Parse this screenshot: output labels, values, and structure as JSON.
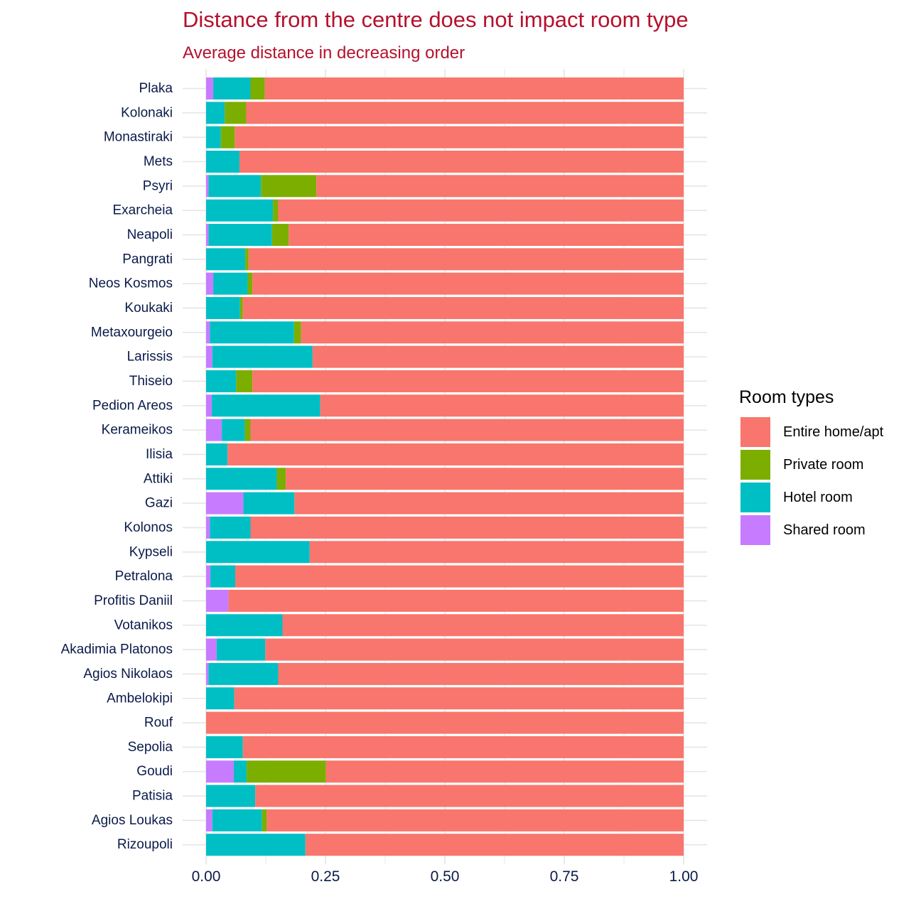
{
  "chart_data": {
    "type": "bar",
    "orientation": "horizontal",
    "stacked": true,
    "title": "Distance from the centre does not impact room type",
    "subtitle": "Average distance in decreasing order",
    "xlim": [
      0,
      1
    ],
    "xticks": [
      "0.00",
      "0.25",
      "0.50",
      "0.75",
      "1.00"
    ],
    "grid": true,
    "legend_title": "Room types",
    "legend_position": "right",
    "categories": [
      "Plaka",
      "Kolonaki",
      "Monastiraki",
      "Mets",
      "Psyri",
      "Exarcheia",
      "Neapoli",
      "Pangrati",
      "Neos Kosmos",
      "Koukaki",
      "Metaxourgeio",
      "Larissis",
      "Thiseio",
      "Pedion Areos",
      "Kerameikos",
      "Ilisia",
      "Attiki",
      "Gazi",
      "Kolonos",
      "Kypseli",
      "Petralona",
      "Profitis Daniil",
      "Votanikos",
      "Akadimia Platonos",
      "Agios Nikolaos",
      "Ambelokipi",
      "Rouf",
      "Sepolia",
      "Goudi",
      "Patisia",
      "Agios Loukas",
      "Rizoupoli"
    ],
    "series": [
      {
        "name": "Shared room",
        "color": "#C77CFF",
        "values": [
          0.015,
          0.0,
          0.0,
          0.0,
          0.005,
          0.0,
          0.005,
          0.0,
          0.015,
          0.0,
          0.008,
          0.013,
          0.0,
          0.012,
          0.033,
          0.0,
          0.0,
          0.078,
          0.008,
          0.0,
          0.009,
          0.047,
          0.0,
          0.022,
          0.005,
          0.0,
          0.0,
          0.0,
          0.058,
          0.0,
          0.013,
          0.0
        ]
      },
      {
        "name": "Hotel room",
        "color": "#00BFC4",
        "values": [
          0.078,
          0.039,
          0.031,
          0.07,
          0.11,
          0.14,
          0.133,
          0.082,
          0.072,
          0.071,
          0.176,
          0.21,
          0.063,
          0.227,
          0.048,
          0.045,
          0.148,
          0.107,
          0.085,
          0.217,
          0.052,
          0.0,
          0.16,
          0.102,
          0.146,
          0.059,
          0.0,
          0.077,
          0.027,
          0.103,
          0.104,
          0.208
        ]
      },
      {
        "name": "Private room",
        "color": "#7CAE00",
        "values": [
          0.03,
          0.045,
          0.029,
          0.0,
          0.116,
          0.011,
          0.035,
          0.007,
          0.01,
          0.006,
          0.015,
          0.0,
          0.034,
          0.0,
          0.012,
          0.0,
          0.019,
          0.0,
          0.0,
          0.0,
          0.0,
          0.0,
          0.0,
          0.0,
          0.0,
          0.0,
          0.0,
          0.0,
          0.166,
          0.0,
          0.01,
          0.0
        ]
      },
      {
        "name": "Entire home/apt",
        "color": "#F8766D",
        "values": [
          0.877,
          0.916,
          0.94,
          0.93,
          0.769,
          0.849,
          0.827,
          0.911,
          0.903,
          0.923,
          0.801,
          0.777,
          0.903,
          0.761,
          0.907,
          0.955,
          0.833,
          0.815,
          0.907,
          0.783,
          0.939,
          0.953,
          0.84,
          0.876,
          0.849,
          0.941,
          1.0,
          0.923,
          0.749,
          0.897,
          0.873,
          0.792
        ]
      }
    ],
    "legend_order": [
      "Entire home/apt",
      "Private room",
      "Hotel room",
      "Shared room"
    ],
    "colors": {
      "title": "#B5112E",
      "axis_text": "#0A1A4A",
      "grid": "#E5E5E5"
    }
  }
}
